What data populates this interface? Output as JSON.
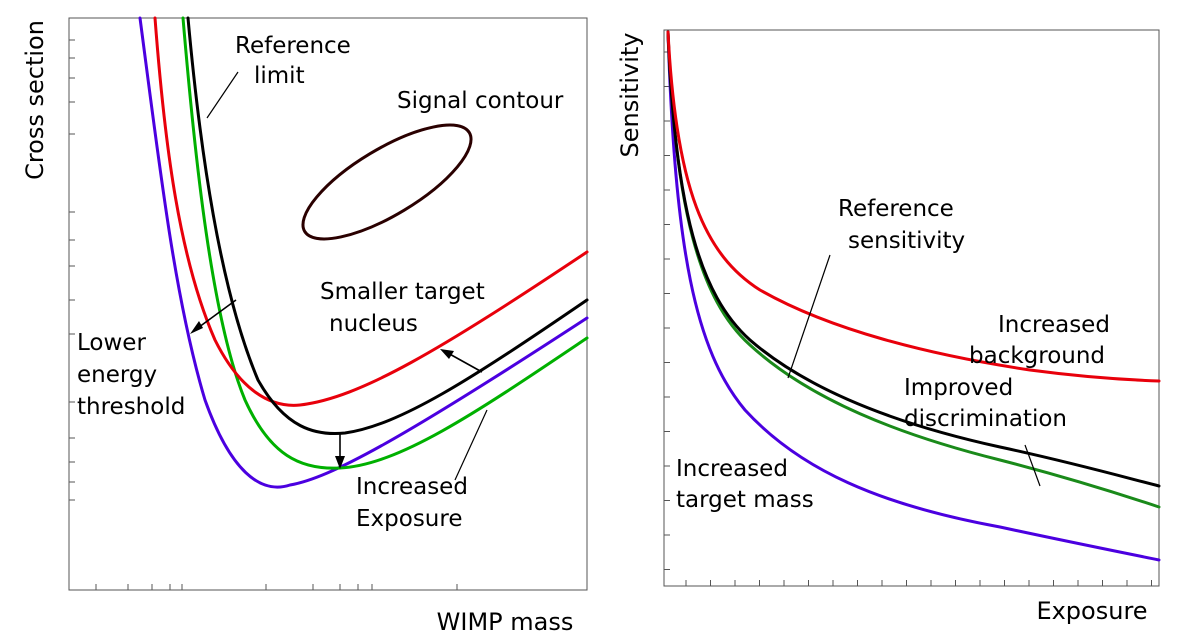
{
  "colors": {
    "red": "#e8000b",
    "black": "#000000",
    "green": "#00b000",
    "dark_green": "#1a8a1a",
    "blue": "#4b00e0",
    "contour": "#2a0000",
    "frame": "#555555"
  },
  "left_panel": {
    "ylabel": "Cross section",
    "xlabel": "WIMP mass",
    "labels": {
      "reference_limit_1": "Reference",
      "reference_limit_2": "limit",
      "signal_contour": "Signal contour",
      "smaller_target_1": "Smaller target",
      "smaller_target_2": "nucleus",
      "lower_energy_1": "Lower",
      "lower_energy_2": "energy",
      "lower_energy_3": "threshold",
      "increased_exposure_1": "Increased",
      "increased_exposure_2": "Exposure"
    }
  },
  "right_panel": {
    "ylabel": "Sensitivity",
    "xlabel": "Exposure",
    "labels": {
      "reference_sensitivity_1": "Reference",
      "reference_sensitivity_2": "sensitivity",
      "increased_background_1": "Increased",
      "increased_background_2": "background",
      "improved_discrimination_1": "Improved",
      "improved_discrimination_2": "discrimination",
      "increased_target_1": "Increased",
      "increased_target_2": "target mass"
    }
  }
}
